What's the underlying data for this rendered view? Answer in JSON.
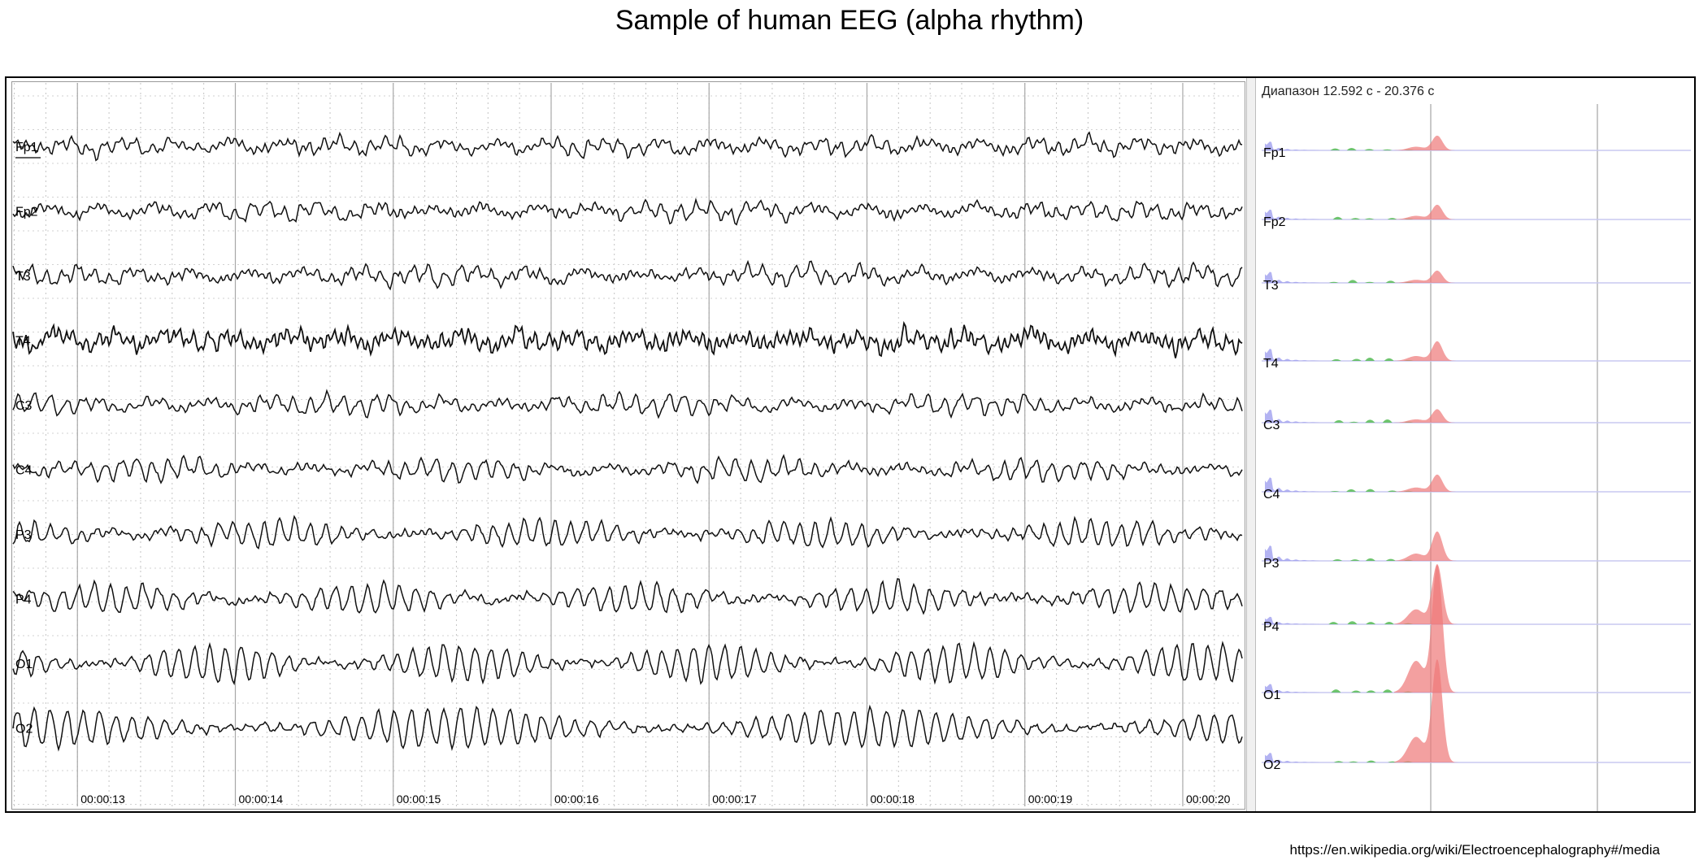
{
  "title": "Sample of human EEG (alpha rhythm)",
  "credit": "https://en.wikipedia.org/wiki/Electroencephalography#/media",
  "spectrum_range_label": "Диапазон 12.592 с - 20.376 с",
  "chart_data": [
    {
      "type": "line",
      "x_ticks": [
        "00:00:13",
        "00:00:14",
        "00:00:15",
        "00:00:16",
        "00:00:17",
        "00:00:18",
        "00:00:19",
        "00:00:20"
      ],
      "x_range": [
        12.592,
        20.376
      ],
      "series": [
        {
          "name": "Fp1",
          "alpha": 0.15
        },
        {
          "name": "Fp2",
          "alpha": 0.15
        },
        {
          "name": "T3",
          "alpha": 0.2
        },
        {
          "name": "T4",
          "alpha": 0.15
        },
        {
          "name": "C3",
          "alpha": 0.3
        },
        {
          "name": "C4",
          "alpha": 0.35
        },
        {
          "name": "P3",
          "alpha": 0.55
        },
        {
          "name": "P4",
          "alpha": 0.65
        },
        {
          "name": "O1",
          "alpha": 0.9
        },
        {
          "name": "O2",
          "alpha": 0.95
        }
      ],
      "grid": true
    },
    {
      "type": "area",
      "title": "Диапазон 12.592 с - 20.376 с",
      "series": [
        {
          "name": "Fp1",
          "alpha_peak": 0.08
        },
        {
          "name": "Fp2",
          "alpha_peak": 0.08
        },
        {
          "name": "T3",
          "alpha_peak": 0.06
        },
        {
          "name": "T4",
          "alpha_peak": 0.12
        },
        {
          "name": "C3",
          "alpha_peak": 0.07
        },
        {
          "name": "C4",
          "alpha_peak": 0.1
        },
        {
          "name": "P3",
          "alpha_peak": 0.2
        },
        {
          "name": "P4",
          "alpha_peak": 0.45
        },
        {
          "name": "O1",
          "alpha_peak": 1.0
        },
        {
          "name": "O2",
          "alpha_peak": 0.8
        }
      ],
      "colors": {
        "delta": "#9999ee",
        "theta": "#55bb55",
        "alpha": "#ee7777",
        "line": "#c8c8f0"
      }
    }
  ]
}
